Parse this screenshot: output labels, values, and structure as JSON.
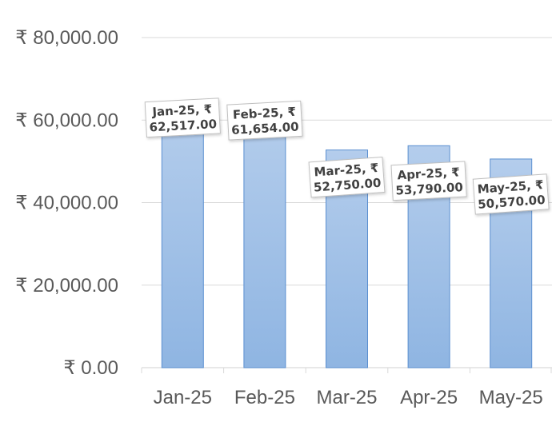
{
  "chart_data": {
    "type": "bar",
    "categories": [
      "Jan-25",
      "Feb-25",
      "Mar-25",
      "Apr-25",
      "May-25"
    ],
    "values": [
      62517,
      61654,
      52750,
      53790,
      50570
    ],
    "data_labels": [
      [
        "Jan-25, ₹",
        "62,517.00"
      ],
      [
        "Feb-25, ₹",
        "61,654.00"
      ],
      [
        "Mar-25, ₹",
        "52,750.00"
      ],
      [
        "Apr-25, ₹",
        "53,790.00"
      ],
      [
        "May-25, ₹",
        "50,570.00"
      ]
    ],
    "y_ticks": [
      0,
      20000,
      40000,
      60000,
      80000
    ],
    "y_tick_labels": [
      "₹ 0.00",
      "₹ 20,000.00",
      "₹ 40,000.00",
      "₹ 60,000.00",
      "₹ 80,000.00"
    ],
    "ylim": [
      0,
      80000
    ],
    "grid": true,
    "title": "",
    "xlabel": "",
    "ylabel": "",
    "colors": {
      "bar_top": "#b4cdec",
      "bar_bottom": "#8fb5e2",
      "bar_stroke": "#5b8fd0",
      "grid": "#d9d9d9",
      "axis": "#d9d9d9",
      "label_border": "#bfbfbf"
    }
  }
}
